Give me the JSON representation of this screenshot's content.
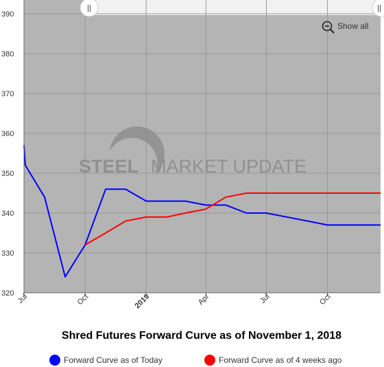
{
  "chart_data": {
    "type": "line",
    "title": "Shred Futures Forward Curve as of November 1, 2018",
    "xlabel": "",
    "ylabel": "",
    "ylim": [
      320,
      390
    ],
    "yticks": [
      320,
      330,
      340,
      350,
      360,
      370,
      380,
      390
    ],
    "xlim": [
      "2018-07-01",
      "2019-12-20"
    ],
    "xticks": [
      {
        "date": "2018-07-01",
        "label": "Jul",
        "bold": false
      },
      {
        "date": "2018-10-01",
        "label": "Oct",
        "bold": false
      },
      {
        "date": "2019-01-01",
        "label": "2019",
        "bold": true
      },
      {
        "date": "2019-04-01",
        "label": "Apr",
        "bold": false
      },
      {
        "date": "2019-07-01",
        "label": "Jul",
        "bold": false
      },
      {
        "date": "2019-10-01",
        "label": "Oct",
        "bold": false
      }
    ],
    "grid": true,
    "legend_position": "bottom",
    "series": [
      {
        "name": "Forward Curve as of Today",
        "color": "#0000ff",
        "points": [
          {
            "x": "2018-07-01",
            "y": 357
          },
          {
            "x": "2018-07-03",
            "y": 352
          },
          {
            "x": "2018-08-01",
            "y": 344
          },
          {
            "x": "2018-09-01",
            "y": 324
          },
          {
            "x": "2018-10-01",
            "y": 332
          },
          {
            "x": "2018-11-01",
            "y": 346
          },
          {
            "x": "2018-12-01",
            "y": 346
          },
          {
            "x": "2019-01-01",
            "y": 343
          },
          {
            "x": "2019-02-01",
            "y": 343
          },
          {
            "x": "2019-03-01",
            "y": 343
          },
          {
            "x": "2019-04-01",
            "y": 342
          },
          {
            "x": "2019-05-01",
            "y": 342
          },
          {
            "x": "2019-06-01",
            "y": 340
          },
          {
            "x": "2019-07-01",
            "y": 340
          },
          {
            "x": "2019-08-01",
            "y": 339
          },
          {
            "x": "2019-09-01",
            "y": 338
          },
          {
            "x": "2019-10-01",
            "y": 337
          },
          {
            "x": "2019-11-01",
            "y": 337
          },
          {
            "x": "2019-12-20",
            "y": 337
          }
        ]
      },
      {
        "name": "Forward Curve as of 4 weeks ago",
        "color": "#ff0000",
        "points": [
          {
            "x": "2018-10-01",
            "y": 332
          },
          {
            "x": "2018-11-01",
            "y": 335
          },
          {
            "x": "2018-12-01",
            "y": 338
          },
          {
            "x": "2019-01-01",
            "y": 339
          },
          {
            "x": "2019-02-01",
            "y": 339
          },
          {
            "x": "2019-03-01",
            "y": 340
          },
          {
            "x": "2019-04-01",
            "y": 341
          },
          {
            "x": "2019-05-01",
            "y": 344
          },
          {
            "x": "2019-06-01",
            "y": 345
          },
          {
            "x": "2019-07-01",
            "y": 345
          },
          {
            "x": "2019-08-01",
            "y": 345
          },
          {
            "x": "2019-09-01",
            "y": 345
          },
          {
            "x": "2019-10-01",
            "y": 345
          },
          {
            "x": "2019-11-01",
            "y": 345
          },
          {
            "x": "2019-12-20",
            "y": 345
          }
        ]
      }
    ]
  },
  "zoom": {
    "show_all_label": "Show all",
    "icon": "zoom-out-icon",
    "left_handle": "||",
    "right_handle": "||"
  },
  "watermark": {
    "bold_text": "STEEL",
    "light_text": "MARKET UPDATE",
    "bold_text_2": "MARKET"
  },
  "colors": {
    "plot_background": "#b4b4b4",
    "grid": "#999999",
    "navigator": "#f2f2f2"
  }
}
